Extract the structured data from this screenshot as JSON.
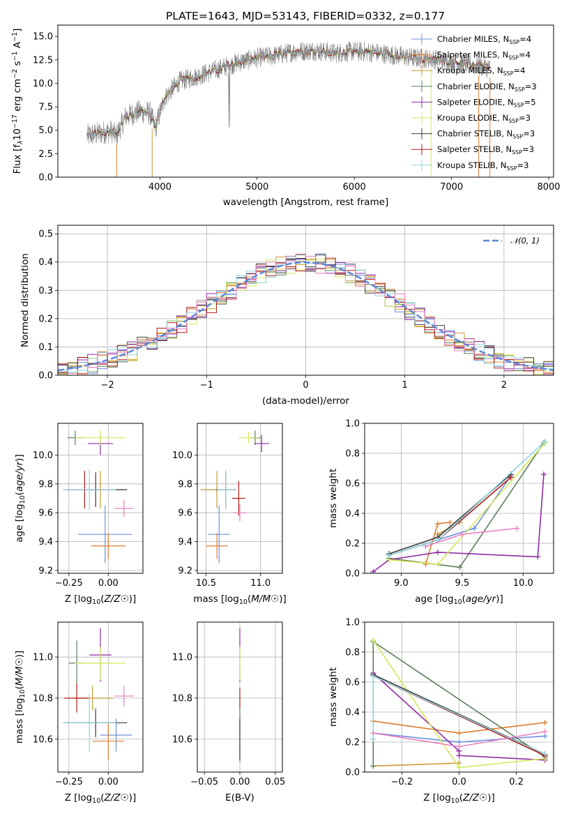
{
  "figure_title": "PLATE=1643, MJD=53143, FIBERID=0332, z=0.177",
  "colors": {
    "chabrier_miles": "#6c8fdc",
    "salpeter_miles": "#e07b2a",
    "kroupa_miles": "#c79a2e",
    "chabrier_elodie": "#5a7d5a",
    "salpeter_elodie": "#8e2aa5",
    "kroupa_elodie": "#d3e85a",
    "chabrier_stelib": "#3a3a3a",
    "salpeter_stelib": "#b01818",
    "kroupa_stelib": "#8fd3df",
    "pink": "#e87fc0",
    "grey_data": "#808080",
    "normal_curve": "#5b86d6"
  },
  "chart_data": [
    {
      "id": "spectrum",
      "type": "line",
      "title": "PLATE=1643, MJD=53143, FIBERID=0332, z=0.177",
      "xlabel": "wavelength [Angstrom, rest frame]",
      "ylabel_parts": [
        "Flux [f",
        "λ",
        "10",
        "−17",
        " erg cm",
        "−2",
        " s",
        "−1",
        " A",
        "−1",
        "]"
      ],
      "xlim": [
        2950,
        8050
      ],
      "ylim": [
        0,
        16.2
      ],
      "xticks": [
        4000,
        5000,
        6000,
        7000,
        8000
      ],
      "yticks": [
        0.0,
        2.5,
        5.0,
        7.5,
        10.0,
        12.5,
        15.0
      ],
      "ytick_labels": [
        "0.0",
        "2.5",
        "5.0",
        "7.5",
        "10.0",
        "12.5",
        "15.0"
      ],
      "grid": false,
      "legend_position": "top-right",
      "continuum": {
        "x": [
          3250,
          3500,
          3550,
          3650,
          3800,
          3900,
          3950,
          4050,
          4200,
          4400,
          4600,
          4800,
          5000,
          5200,
          5400,
          5600,
          5800,
          6000,
          6200,
          6400,
          6600,
          6800,
          7000,
          7200,
          7400
        ],
        "y": [
          4.4,
          4.9,
          4.4,
          6.5,
          7.0,
          6.8,
          5.2,
          8.5,
          10.2,
          10.8,
          11.5,
          12.2,
          12.7,
          13.0,
          13.4,
          13.5,
          13.2,
          13.4,
          13.3,
          13.0,
          12.7,
          12.6,
          12.3,
          12.0,
          11.6
        ]
      },
      "series": [
        {
          "name": "Chabrier MILES",
          "nssp": "4"
        },
        {
          "name": "Salpeter MILES",
          "nssp": "4"
        },
        {
          "name": "Kroupa MILES",
          "nssp": "4"
        },
        {
          "name": "Chabrier ELODIE",
          "nssp": "3"
        },
        {
          "name": "Salpeter ELODIE",
          "nssp": "5"
        },
        {
          "name": "Kroupa ELODIE",
          "nssp": "3"
        },
        {
          "name": "Chabrier STELIB",
          "nssp": "3"
        },
        {
          "name": "Salpeter STELIB",
          "nssp": "3"
        },
        {
          "name": "Kroupa STELIB",
          "nssp": "3"
        }
      ],
      "legend_subscript": "SSP"
    },
    {
      "id": "residuals",
      "type": "histogram",
      "xlabel": "(data-model)/error",
      "ylabel": "Normed distribution",
      "xlim": [
        -2.5,
        2.5
      ],
      "ylim": [
        0,
        0.53
      ],
      "xticks": [
        -2,
        -1,
        0,
        1,
        2
      ],
      "xtick_labels": [
        "−2",
        "−1",
        "0",
        "1",
        "2"
      ],
      "yticks": [
        0.0,
        0.1,
        0.2,
        0.3,
        0.4,
        0.5
      ],
      "ytick_labels": [
        "0.0",
        "0.1",
        "0.2",
        "0.3",
        "0.4",
        "0.5"
      ],
      "grid": true,
      "bin_width": 0.1,
      "bin_start": -2.5,
      "reference_curve": {
        "name": "𝒩(0, 1)",
        "mean": 0,
        "sigma": 1
      },
      "legend_position": "top-right"
    },
    {
      "id": "age_vs_Z",
      "type": "scatter",
      "xlabel": "Z [log10(Z/Z☉)]",
      "ylabel": "age  [log10(age/yr)]",
      "xlim": [
        -0.32,
        0.22
      ],
      "ylim": [
        9.18,
        10.22
      ],
      "xticks": [
        -0.25,
        0.0
      ],
      "xtick_labels": [
        "−0.25",
        "0.00"
      ],
      "yticks": [
        9.2,
        9.4,
        9.6,
        9.8,
        10.0
      ],
      "ytick_labels": [
        "9.2",
        "9.4",
        "9.6",
        "9.8",
        "10.0"
      ],
      "grid": true,
      "points": [
        {
          "c": "chabrier_miles",
          "x": -0.02,
          "xerr": 0.17,
          "y": 9.45,
          "yerr": 0.2
        },
        {
          "c": "salpeter_miles",
          "x": 0.0,
          "xerr": 0.11,
          "y": 9.37,
          "yerr": 0.09
        },
        {
          "c": "kroupa_miles",
          "x": -0.05,
          "xerr": 0.15,
          "y": 9.76,
          "yerr": 0.13
        },
        {
          "c": "chabrier_elodie",
          "x": -0.21,
          "xerr": 0.05,
          "y": 10.12,
          "yerr": 0.05
        },
        {
          "c": "salpeter_elodie",
          "x": -0.05,
          "xerr": 0.08,
          "y": 10.08,
          "yerr": 0.08
        },
        {
          "c": "kroupa_elodie",
          "x": -0.05,
          "xerr": 0.16,
          "y": 10.12,
          "yerr": 0.05
        },
        {
          "c": "chabrier_stelib",
          "x": -0.08,
          "xerr": 0.2,
          "y": 9.76,
          "yerr": 0.12
        },
        {
          "c": "salpeter_stelib",
          "x": -0.15,
          "xerr": 0.12,
          "y": 9.76,
          "yerr": 0.13
        },
        {
          "c": "kroupa_stelib",
          "x": -0.12,
          "xerr": 0.17,
          "y": 9.76,
          "yerr": 0.14
        },
        {
          "c": "pink",
          "x": 0.1,
          "xerr": 0.06,
          "y": 9.63,
          "yerr": 0.06
        }
      ]
    },
    {
      "id": "age_vs_mass",
      "type": "scatter",
      "xlabel": "mass [log10(M/M☉)]",
      "ylabel": "",
      "xlim": [
        10.42,
        11.2
      ],
      "ylim": [
        9.18,
        10.22
      ],
      "xticks": [
        10.5,
        11.0
      ],
      "xtick_labels": [
        "10.5",
        "11.0"
      ],
      "yticks": [
        9.2,
        9.4,
        9.6,
        9.8,
        10.0
      ],
      "ytick_labels": [
        "9.2",
        "9.4",
        "9.6",
        "9.8",
        "10.0"
      ],
      "grid": true,
      "points": [
        {
          "c": "chabrier_miles",
          "x": 10.62,
          "xerr": 0.1,
          "y": 9.45,
          "yerr": 0.2
        },
        {
          "c": "salpeter_miles",
          "x": 10.6,
          "xerr": 0.1,
          "y": 9.37,
          "yerr": 0.09
        },
        {
          "c": "kroupa_miles",
          "x": 10.6,
          "xerr": 0.15,
          "y": 9.76,
          "yerr": 0.13
        },
        {
          "c": "chabrier_elodie",
          "x": 10.95,
          "xerr": 0.05,
          "y": 10.12,
          "yerr": 0.05
        },
        {
          "c": "salpeter_elodie",
          "x": 11.01,
          "xerr": 0.07,
          "y": 10.08,
          "yerr": 0.06
        },
        {
          "c": "kroupa_elodie",
          "x": 10.89,
          "xerr": 0.09,
          "y": 10.12,
          "yerr": 0.04
        },
        {
          "c": "chabrier_stelib",
          "x": 10.68,
          "xerr": 0.09,
          "y": 9.76,
          "yerr": 0.12
        },
        {
          "c": "salpeter_stelib",
          "x": 10.8,
          "xerr": 0.06,
          "y": 9.7,
          "yerr": 0.12
        },
        {
          "c": "kroupa_stelib",
          "x": 10.68,
          "xerr": 0.08,
          "y": 9.76,
          "yerr": 0.14
        },
        {
          "c": "pink",
          "x": 10.81,
          "xerr": 0.06,
          "y": 9.6,
          "yerr": 0.06
        }
      ]
    },
    {
      "id": "mass_weight_vs_age",
      "type": "line",
      "xlabel": "age  [log10(age/yr)]",
      "ylabel": "mass weight",
      "xlim": [
        8.7,
        10.25
      ],
      "ylim": [
        0,
        1.0
      ],
      "xticks": [
        9.0,
        9.5,
        10.0
      ],
      "xtick_labels": [
        "9.0",
        "9.5",
        "10.0"
      ],
      "yticks": [
        0.0,
        0.2,
        0.4,
        0.6,
        0.8,
        1.0
      ],
      "ytick_labels": [
        "0.0",
        "0.2",
        "0.4",
        "0.6",
        "0.8",
        "1.0"
      ],
      "grid": true,
      "series": [
        {
          "c": "chabrier_miles",
          "x": [
            8.9,
            9.6,
            9.9
          ],
          "y": [
            0.12,
            0.3,
            0.65
          ]
        },
        {
          "c": "salpeter_miles",
          "x": [
            9.2,
            9.3,
            9.4
          ],
          "y": [
            0.06,
            0.33,
            0.34
          ]
        },
        {
          "c": "kroupa_miles",
          "x": [
            9.3,
            9.48
          ],
          "y": [
            0.26,
            0.34
          ]
        },
        {
          "c": "chabrier_elodie",
          "x": [
            8.9,
            9.48,
            10.17
          ],
          "y": [
            0.1,
            0.04,
            0.87
          ]
        },
        {
          "c": "salpeter_elodie",
          "x": [
            8.77,
            8.9,
            9.3,
            10.12,
            10.17
          ],
          "y": [
            0.01,
            0.09,
            0.14,
            0.11,
            0.66
          ]
        },
        {
          "c": "kroupa_elodie",
          "x": [
            8.9,
            9.3,
            10.18
          ],
          "y": [
            0.09,
            0.06,
            0.87
          ]
        },
        {
          "c": "chabrier_stelib",
          "x": [
            8.9,
            9.3,
            9.9
          ],
          "y": [
            0.13,
            0.24,
            0.66
          ]
        },
        {
          "c": "salpeter_stelib",
          "x": [
            9.3,
            9.9
          ],
          "y": [
            0.22,
            0.64
          ]
        },
        {
          "c": "kroupa_stelib",
          "x": [
            8.9,
            9.3,
            10.18
          ],
          "y": [
            0.12,
            0.22,
            0.88
          ]
        },
        {
          "c": "pink",
          "x": [
            9.2,
            9.5,
            9.95
          ],
          "y": [
            0.18,
            0.26,
            0.3
          ]
        }
      ]
    },
    {
      "id": "mass_vs_Z",
      "type": "scatter",
      "xlabel": "Z [log10(Z/Z☉)]",
      "ylabel": "mass [log10(M/M☉)]",
      "xlim": [
        -0.32,
        0.22
      ],
      "ylim": [
        10.44,
        11.17
      ],
      "xticks": [
        -0.25,
        0.0
      ],
      "xtick_labels": [
        "−0.25",
        "0.00"
      ],
      "yticks": [
        10.6,
        10.8,
        11.0
      ],
      "ytick_labels": [
        "10.6",
        "10.8",
        "11.0"
      ],
      "grid": true,
      "points": [
        {
          "c": "chabrier_miles",
          "x": 0.05,
          "xerr": 0.1,
          "y": 10.62,
          "yerr": 0.08
        },
        {
          "c": "salpeter_miles",
          "x": 0.0,
          "xerr": 0.1,
          "y": 10.59,
          "yerr": 0.09
        },
        {
          "c": "kroupa_miles",
          "x": -0.1,
          "xerr": 0.13,
          "y": 10.8,
          "yerr": 0.06
        },
        {
          "c": "chabrier_elodie",
          "x": -0.2,
          "xerr": 0.05,
          "y": 10.97,
          "yerr": 0.11
        },
        {
          "c": "salpeter_elodie",
          "x": -0.05,
          "xerr": 0.07,
          "y": 11.01,
          "yerr": 0.13
        },
        {
          "c": "kroupa_elodie",
          "x": -0.05,
          "xerr": 0.16,
          "y": 10.97,
          "yerr": 0.08
        },
        {
          "c": "chabrier_stelib",
          "x": -0.08,
          "xerr": 0.2,
          "y": 10.68,
          "yerr": 0.07
        },
        {
          "c": "salpeter_stelib",
          "x": -0.2,
          "xerr": 0.08,
          "y": 10.8,
          "yerr": 0.07
        },
        {
          "c": "kroupa_stelib",
          "x": -0.12,
          "xerr": 0.17,
          "y": 10.68,
          "yerr": 0.14
        },
        {
          "c": "pink",
          "x": 0.1,
          "xerr": 0.06,
          "y": 10.81,
          "yerr": 0.05
        }
      ]
    },
    {
      "id": "mass_vs_ebv",
      "type": "scatter",
      "xlabel": "E(B-V)",
      "ylabel": "",
      "xlim": [
        -0.06,
        0.06
      ],
      "ylim": [
        10.44,
        11.17
      ],
      "xticks": [
        -0.05,
        0.0,
        0.05
      ],
      "xtick_labels": [
        "−0.05",
        "0.00",
        "0.05"
      ],
      "yticks": [
        10.6,
        10.8,
        11.0
      ],
      "ytick_labels": [
        "10.6",
        "10.8",
        "11.0"
      ],
      "grid": true,
      "points": [
        {
          "c": "chabrier_elodie",
          "x": 0.0,
          "xerr": 0,
          "y": 10.62,
          "yerr": 0.13
        },
        {
          "c": "salpeter_elodie",
          "x": 0.0,
          "xerr": 0,
          "y": 11.01,
          "yerr": 0.13
        },
        {
          "c": "kroupa_elodie",
          "x": 0.0,
          "xerr": 0,
          "y": 10.97,
          "yerr": 0.08
        },
        {
          "c": "salpeter_stelib",
          "x": 0.0,
          "xerr": 0,
          "y": 10.8,
          "yerr": 0.05
        },
        {
          "c": "chabrier_stelib",
          "x": 0.0,
          "xerr": 0,
          "y": 10.6,
          "yerr": 0.1
        }
      ]
    },
    {
      "id": "mass_weight_vs_Z",
      "type": "line",
      "xlabel": "Z [log10(Z/Z☉)]",
      "ylabel": "mass weight",
      "xlim": [
        -0.33,
        0.33
      ],
      "ylim": [
        0,
        1.0
      ],
      "xticks": [
        -0.2,
        0.0,
        0.2
      ],
      "xtick_labels": [
        "−0.2",
        "0.0",
        "0.2"
      ],
      "yticks": [
        0.0,
        0.2,
        0.4,
        0.6,
        0.8,
        1.0
      ],
      "ytick_labels": [
        "0.0",
        "0.2",
        "0.4",
        "0.6",
        "0.8",
        "1.0"
      ],
      "grid": true,
      "series": [
        {
          "c": "chabrier_miles",
          "x": [
            -0.3,
            0.0,
            0.3
          ],
          "y": [
            0.26,
            0.2,
            0.24
          ]
        },
        {
          "c": "salpeter_miles",
          "x": [
            -0.3,
            0.0,
            0.3
          ],
          "y": [
            0.34,
            0.26,
            0.33
          ]
        },
        {
          "c": "kroupa_miles",
          "x": [
            -0.3,
            0.0
          ],
          "y": [
            0.04,
            0.06
          ]
        },
        {
          "c": "chabrier_elodie",
          "x": [
            -0.3,
            -0.3,
            0.3
          ],
          "y": [
            0.04,
            0.87,
            0.1
          ]
        },
        {
          "c": "salpeter_elodie",
          "x": [
            -0.3,
            0.0,
            0.0,
            0.3
          ],
          "y": [
            0.66,
            0.14,
            0.11,
            0.08
          ]
        },
        {
          "c": "kroupa_elodie",
          "x": [
            -0.3,
            0.0,
            0.3
          ],
          "y": [
            0.88,
            0.03,
            0.09
          ]
        },
        {
          "c": "chabrier_stelib",
          "x": [
            -0.3,
            0.3
          ],
          "y": [
            0.65,
            0.12
          ]
        },
        {
          "c": "salpeter_stelib",
          "x": [
            -0.3,
            0.3
          ],
          "y": [
            0.64,
            0.11
          ]
        },
        {
          "c": "kroupa_stelib",
          "x": [
            -0.3,
            -0.3,
            0.3
          ],
          "y": [
            0.22,
            0.64,
            0.12
          ]
        },
        {
          "c": "pink",
          "x": [
            -0.3,
            0.0,
            0.3
          ],
          "y": [
            0.26,
            0.17,
            0.27
          ]
        }
      ]
    }
  ]
}
